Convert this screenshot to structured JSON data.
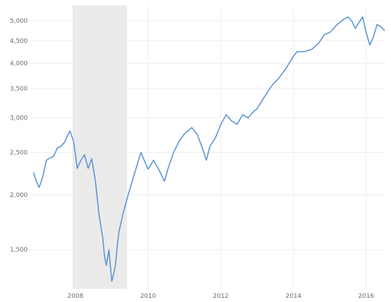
{
  "chart_data": {
    "type": "line",
    "title": "",
    "xlabel": "",
    "ylabel": "",
    "y_scale": "log",
    "ylim": [
      1220,
      5300
    ],
    "xlim": [
      2006.8,
      2016.55
    ],
    "grid": true,
    "recession_shading": {
      "start": 2007.92,
      "end": 2009.42,
      "color": "#eaeaea"
    },
    "y_ticks": [
      {
        "value": 1500,
        "label": "1,500"
      },
      {
        "value": 2000,
        "label": "2,000"
      },
      {
        "value": 2500,
        "label": "2,500"
      },
      {
        "value": 3000,
        "label": "3,000"
      },
      {
        "value": 3500,
        "label": "3,500"
      },
      {
        "value": 4000,
        "label": "4,000"
      },
      {
        "value": 4500,
        "label": "4,500"
      },
      {
        "value": 5000,
        "label": "5,000"
      }
    ],
    "x_ticks": [
      {
        "value": 2008,
        "label": "2008"
      },
      {
        "value": 2010,
        "label": "2010"
      },
      {
        "value": 2012,
        "label": "2012"
      },
      {
        "value": 2014,
        "label": "2014"
      },
      {
        "value": 2016,
        "label": "2016"
      }
    ],
    "series": [
      {
        "color": "#5b95d3",
        "x": [
          2006.85,
          2006.92,
          2007.0,
          2007.1,
          2007.2,
          2007.3,
          2007.4,
          2007.5,
          2007.6,
          2007.7,
          2007.8,
          2007.85,
          2007.95,
          2008.05,
          2008.15,
          2008.25,
          2008.35,
          2008.45,
          2008.55,
          2008.65,
          2008.75,
          2008.8,
          2008.85,
          2008.92,
          2009.0,
          2009.05,
          2009.1,
          2009.15,
          2009.2,
          2009.3,
          2009.45,
          2009.6,
          2009.8,
          2010.0,
          2010.15,
          2010.3,
          2010.45,
          2010.55,
          2010.7,
          2010.85,
          2011.0,
          2011.2,
          2011.35,
          2011.5,
          2011.6,
          2011.7,
          2011.85,
          2012.0,
          2012.15,
          2012.3,
          2012.45,
          2012.6,
          2012.75,
          2012.9,
          2013.0,
          2013.2,
          2013.4,
          2013.6,
          2013.8,
          2014.0,
          2014.1,
          2014.3,
          2014.5,
          2014.7,
          2014.85,
          2015.0,
          2015.2,
          2015.4,
          2015.5,
          2015.6,
          2015.7,
          2015.8,
          2015.9,
          2016.0,
          2016.05,
          2016.1,
          2016.2,
          2016.3,
          2016.4,
          2016.5
        ],
        "y": [
          2250,
          2150,
          2080,
          2200,
          2400,
          2430,
          2450,
          2560,
          2580,
          2640,
          2750,
          2800,
          2650,
          2300,
          2400,
          2470,
          2300,
          2420,
          2150,
          1800,
          1600,
          1450,
          1380,
          1500,
          1270,
          1320,
          1380,
          1530,
          1650,
          1800,
          2000,
          2200,
          2500,
          2290,
          2400,
          2280,
          2150,
          2300,
          2500,
          2650,
          2760,
          2850,
          2750,
          2550,
          2400,
          2580,
          2700,
          2900,
          3050,
          2950,
          2900,
          3050,
          3000,
          3100,
          3150,
          3350,
          3550,
          3700,
          3900,
          4150,
          4250,
          4250,
          4300,
          4450,
          4650,
          4700,
          4900,
          5050,
          5100,
          5000,
          4800,
          4950,
          5100,
          4700,
          4550,
          4400,
          4600,
          4900,
          4850,
          4750
        ]
      }
    ]
  }
}
